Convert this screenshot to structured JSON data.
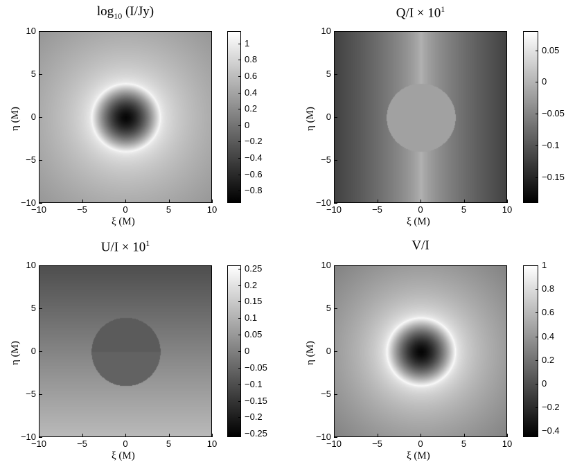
{
  "chart_data": [
    {
      "type": "heatmap",
      "title": {
        "base": "log",
        "sub": "10",
        "rest": " (I/Jy)"
      },
      "xlabel": "ξ (M)",
      "ylabel": "η (M)",
      "xlim": [
        -10,
        10
      ],
      "ylim": [
        -10,
        10
      ],
      "xticks": [
        "−10",
        "−5",
        "0",
        "5",
        "10"
      ],
      "yticks": [
        "10",
        "5",
        "0",
        "−5",
        "−10"
      ],
      "colorbar": {
        "range": [
          -0.95,
          1.15
        ],
        "ticks": [
          "1",
          "0.8",
          "0.6",
          "0.4",
          "0.2",
          "0",
          "−0.2",
          "−0.4",
          "−0.6",
          "−0.8"
        ],
        "tick_values": [
          1,
          0.8,
          0.6,
          0.4,
          0.2,
          0,
          -0.2,
          -0.4,
          -0.6,
          -0.8
        ]
      },
      "colormap": "gray",
      "structure": {
        "disk_radius_M": 4,
        "center_value": -0.9,
        "rim_value": 1.1,
        "outer_value": 0.3
      }
    },
    {
      "type": "heatmap",
      "title": {
        "base": "Q/I × 10",
        "sup": "1"
      },
      "xlabel": "ξ (M)",
      "ylabel": "η (M)",
      "xlim": [
        -10,
        10
      ],
      "ylim": [
        -10,
        10
      ],
      "xticks": [
        "−10",
        "−5",
        "0",
        "5",
        "10"
      ],
      "yticks": [
        "10",
        "5",
        "0",
        "−5",
        "−10"
      ],
      "colorbar": {
        "range": [
          -0.19,
          0.08
        ],
        "ticks": [
          "0.05",
          "0",
          "−0.05",
          "−0.1",
          "−0.15"
        ],
        "tick_values": [
          0.05,
          0,
          -0.05,
          -0.1,
          -0.15
        ]
      },
      "colormap": "gray",
      "structure": {
        "disk_radius_M": 4,
        "disk_value": -0.02,
        "edge_value": -0.12,
        "center_line_value": 0.0
      }
    },
    {
      "type": "heatmap",
      "title": {
        "base": "U/I × 10",
        "sup": "1"
      },
      "xlabel": "ξ (M)",
      "ylabel": "η (M)",
      "xlim": [
        -10,
        10
      ],
      "ylim": [
        -10,
        10
      ],
      "xticks": [
        "−10",
        "−5",
        "0",
        "5",
        "10"
      ],
      "yticks": [
        "10",
        "5",
        "0",
        "−5",
        "−10"
      ],
      "colorbar": {
        "range": [
          -0.26,
          0.26
        ],
        "ticks": [
          "0.25",
          "0.2",
          "0.15",
          "0.1",
          "0.05",
          "0",
          "−0.05",
          "−0.1",
          "−0.15",
          "−0.2",
          "−0.25"
        ],
        "tick_values": [
          0.25,
          0.2,
          0.15,
          0.1,
          0.05,
          0,
          -0.05,
          -0.1,
          -0.15,
          -0.2,
          -0.25
        ]
      },
      "colormap": "gray",
      "structure": {
        "disk_radius_M": 4,
        "top_value": -0.1,
        "bottom_value": 0.12,
        "disk_value": -0.07
      }
    },
    {
      "type": "heatmap",
      "title": {
        "base": "V/I"
      },
      "xlabel": "ξ (M)",
      "ylabel": "η (M)",
      "xlim": [
        -10,
        10
      ],
      "ylim": [
        -10,
        10
      ],
      "xticks": [
        "−10",
        "−5",
        "0",
        "5",
        "10"
      ],
      "yticks": [
        "10",
        "5",
        "0",
        "−5",
        "−10"
      ],
      "colorbar": {
        "range": [
          -0.45,
          1.0
        ],
        "ticks": [
          "1",
          "0.8",
          "0.6",
          "0.4",
          "0.2",
          "0",
          "−0.2",
          "−0.4"
        ],
        "tick_values": [
          1,
          0.8,
          0.6,
          0.4,
          0.2,
          0,
          -0.2,
          -0.4
        ]
      },
      "colormap": "gray",
      "structure": {
        "disk_radius_M": 4,
        "center_value": -0.42,
        "rim_value": 0.98,
        "outer_value": 0.3
      }
    }
  ]
}
